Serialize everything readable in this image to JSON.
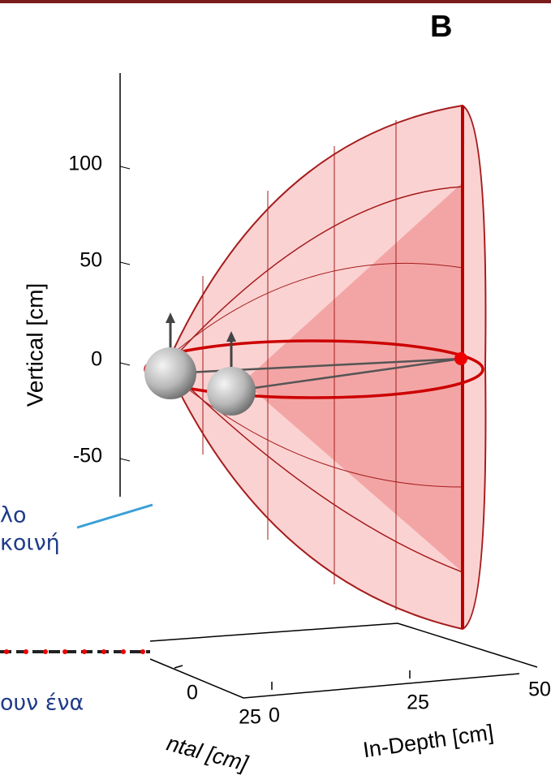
{
  "figure": {
    "panel_label": "B",
    "vertical_axis": {
      "label": "Vertical [cm]",
      "ticks": [
        "100",
        "50",
        "0",
        "-50"
      ]
    },
    "depth_axis": {
      "label": "In-Depth [cm]",
      "ticks": [
        "0",
        "25",
        "50"
      ]
    },
    "horizontal_axis": {
      "label": "ntal [cm]",
      "ticks": [
        "0",
        "25"
      ]
    }
  },
  "slide_fragments": [
    "λο",
    "κοινή",
    "ουν ένα"
  ]
}
